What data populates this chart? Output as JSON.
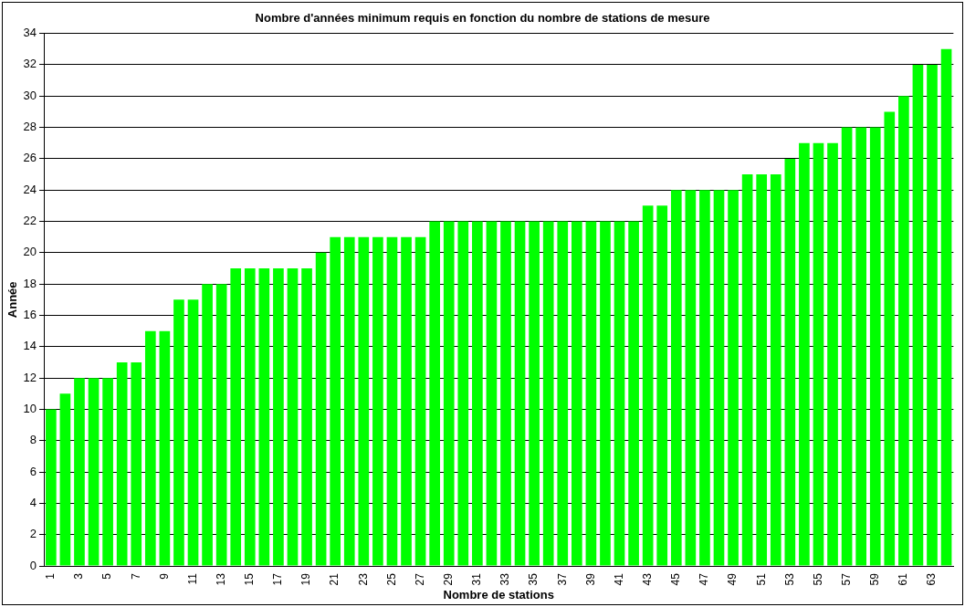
{
  "chart_data": {
    "type": "bar",
    "title": "Nombre d'années minimum requis en fonction du nombre de stations de mesure",
    "xlabel": "Nombre de stations",
    "ylabel": "Année",
    "categories": [
      "1",
      null,
      "3",
      null,
      "5",
      null,
      "7",
      null,
      "9",
      null,
      "11",
      null,
      "13",
      null,
      "15",
      null,
      "17",
      null,
      "19",
      null,
      "21",
      null,
      "23",
      null,
      "25",
      null,
      "27",
      null,
      "29",
      null,
      "31",
      null,
      "33",
      null,
      "35",
      null,
      "37",
      null,
      "39",
      null,
      "41",
      null,
      "43",
      null,
      "45",
      null,
      "47",
      null,
      "49",
      null,
      "51",
      null,
      "53",
      null,
      "55",
      null,
      "57",
      null,
      "59",
      null,
      "61",
      null,
      "63",
      null
    ],
    "values": [
      10,
      11,
      12,
      12,
      12,
      13,
      13,
      15,
      15,
      17,
      17,
      18,
      18,
      19,
      19,
      19,
      19,
      19,
      19,
      20,
      21,
      21,
      21,
      21,
      21,
      21,
      21,
      22,
      22,
      22,
      22,
      22,
      22,
      22,
      22,
      22,
      22,
      22,
      22,
      22,
      22,
      22,
      23,
      23,
      24,
      24,
      24,
      24,
      24,
      25,
      25,
      25,
      26,
      27,
      27,
      27,
      28,
      28,
      28,
      29,
      30,
      32,
      32,
      33
    ],
    "color": "#00ff00",
    "ylim": [
      0,
      34
    ],
    "yticks": [
      0,
      2,
      4,
      6,
      8,
      10,
      12,
      14,
      16,
      18,
      20,
      22,
      24,
      26,
      28,
      30,
      32,
      34
    ],
    "grid": "y",
    "legend": false
  }
}
